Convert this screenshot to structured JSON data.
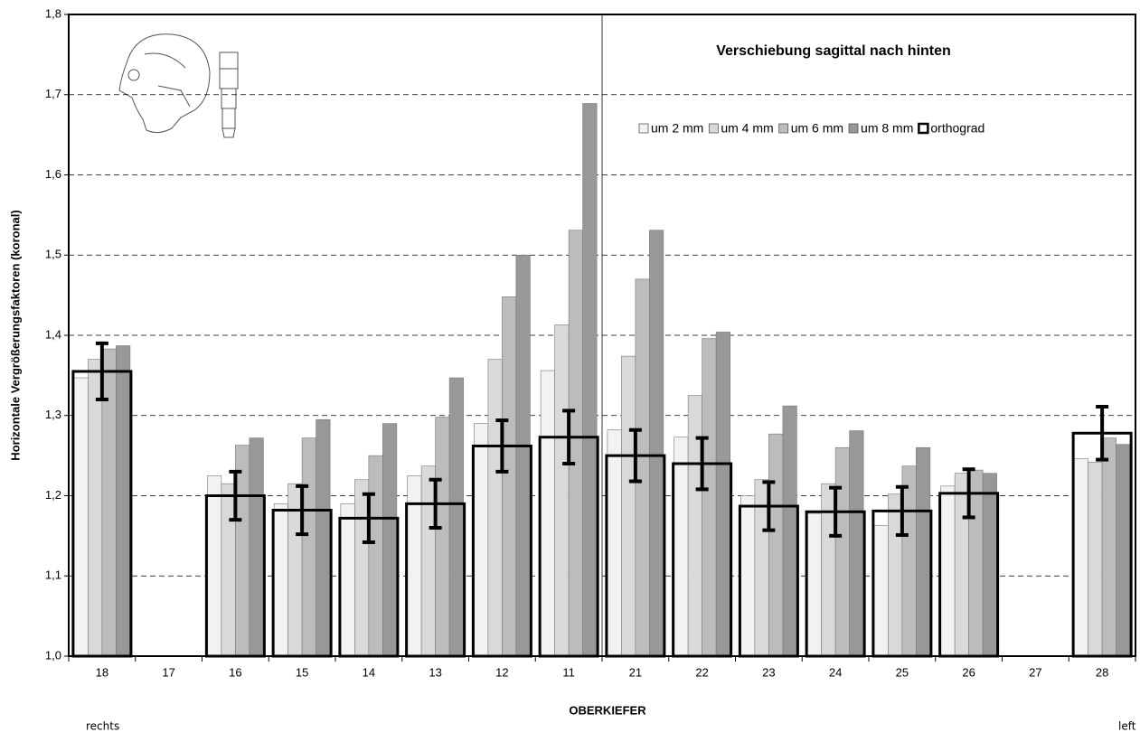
{
  "chart_data": {
    "type": "bar",
    "title": "Verschiebung sagittal nach hinten",
    "x_label": "OBERKIEFER",
    "y_label": "Horizontale Vergrößerungsfaktoren (koronal)",
    "left_note": "rechts",
    "right_note": "left",
    "categories": [
      "18",
      "17",
      "16",
      "15",
      "14",
      "13",
      "12",
      "11",
      "21",
      "22",
      "23",
      "24",
      "25",
      "26",
      "27",
      "28"
    ],
    "series": [
      {
        "name": "um 2 mm",
        "color": "#f2f2f2",
        "values": [
          1.347,
          null,
          1.225,
          1.19,
          1.19,
          1.225,
          1.29,
          1.356,
          1.282,
          1.273,
          1.2,
          1.178,
          1.163,
          1.212,
          null,
          1.246
        ]
      },
      {
        "name": "um 4 mm",
        "color": "#d9d9d9",
        "values": [
          1.37,
          null,
          1.215,
          1.215,
          1.22,
          1.237,
          1.37,
          1.413,
          1.374,
          1.325,
          1.22,
          1.215,
          1.202,
          1.228,
          null,
          1.242
        ]
      },
      {
        "name": "um 6 mm",
        "color": "#bcbcbc",
        "values": [
          1.383,
          null,
          1.263,
          1.272,
          1.25,
          1.298,
          1.448,
          1.531,
          1.47,
          1.396,
          1.277,
          1.26,
          1.237,
          1.232,
          null,
          1.272
        ]
      },
      {
        "name": "um 8 mm",
        "color": "#989898",
        "values": [
          1.387,
          null,
          1.272,
          1.295,
          1.29,
          1.347,
          1.5,
          1.689,
          1.531,
          1.404,
          1.312,
          1.281,
          1.26,
          1.228,
          null,
          1.264
        ]
      },
      {
        "name": "orthograd",
        "color": "#000000",
        "style": "outline",
        "values": [
          1.355,
          null,
          1.2,
          1.182,
          1.172,
          1.19,
          1.262,
          1.273,
          1.25,
          1.24,
          1.187,
          1.18,
          1.181,
          1.203,
          null,
          1.278
        ],
        "errors": [
          0.035,
          null,
          0.03,
          0.03,
          0.03,
          0.03,
          0.032,
          0.033,
          0.032,
          0.032,
          0.03,
          0.03,
          0.03,
          0.03,
          null,
          0.033
        ]
      }
    ],
    "ylim": [
      1.0,
      1.8
    ],
    "yticks": [
      {
        "value": 1.0,
        "label": "1,0"
      },
      {
        "value": 1.1,
        "label": "1,1"
      },
      {
        "value": 1.2,
        "label": "1,2"
      },
      {
        "value": 1.3,
        "label": "1,3"
      },
      {
        "value": 1.4,
        "label": "1,4"
      },
      {
        "value": 1.5,
        "label": "1,5"
      },
      {
        "value": 1.6,
        "label": "1,6"
      },
      {
        "value": 1.7,
        "label": "1,7"
      },
      {
        "value": 1.8,
        "label": "1,8"
      }
    ],
    "grid": true,
    "legend": "upper right"
  }
}
